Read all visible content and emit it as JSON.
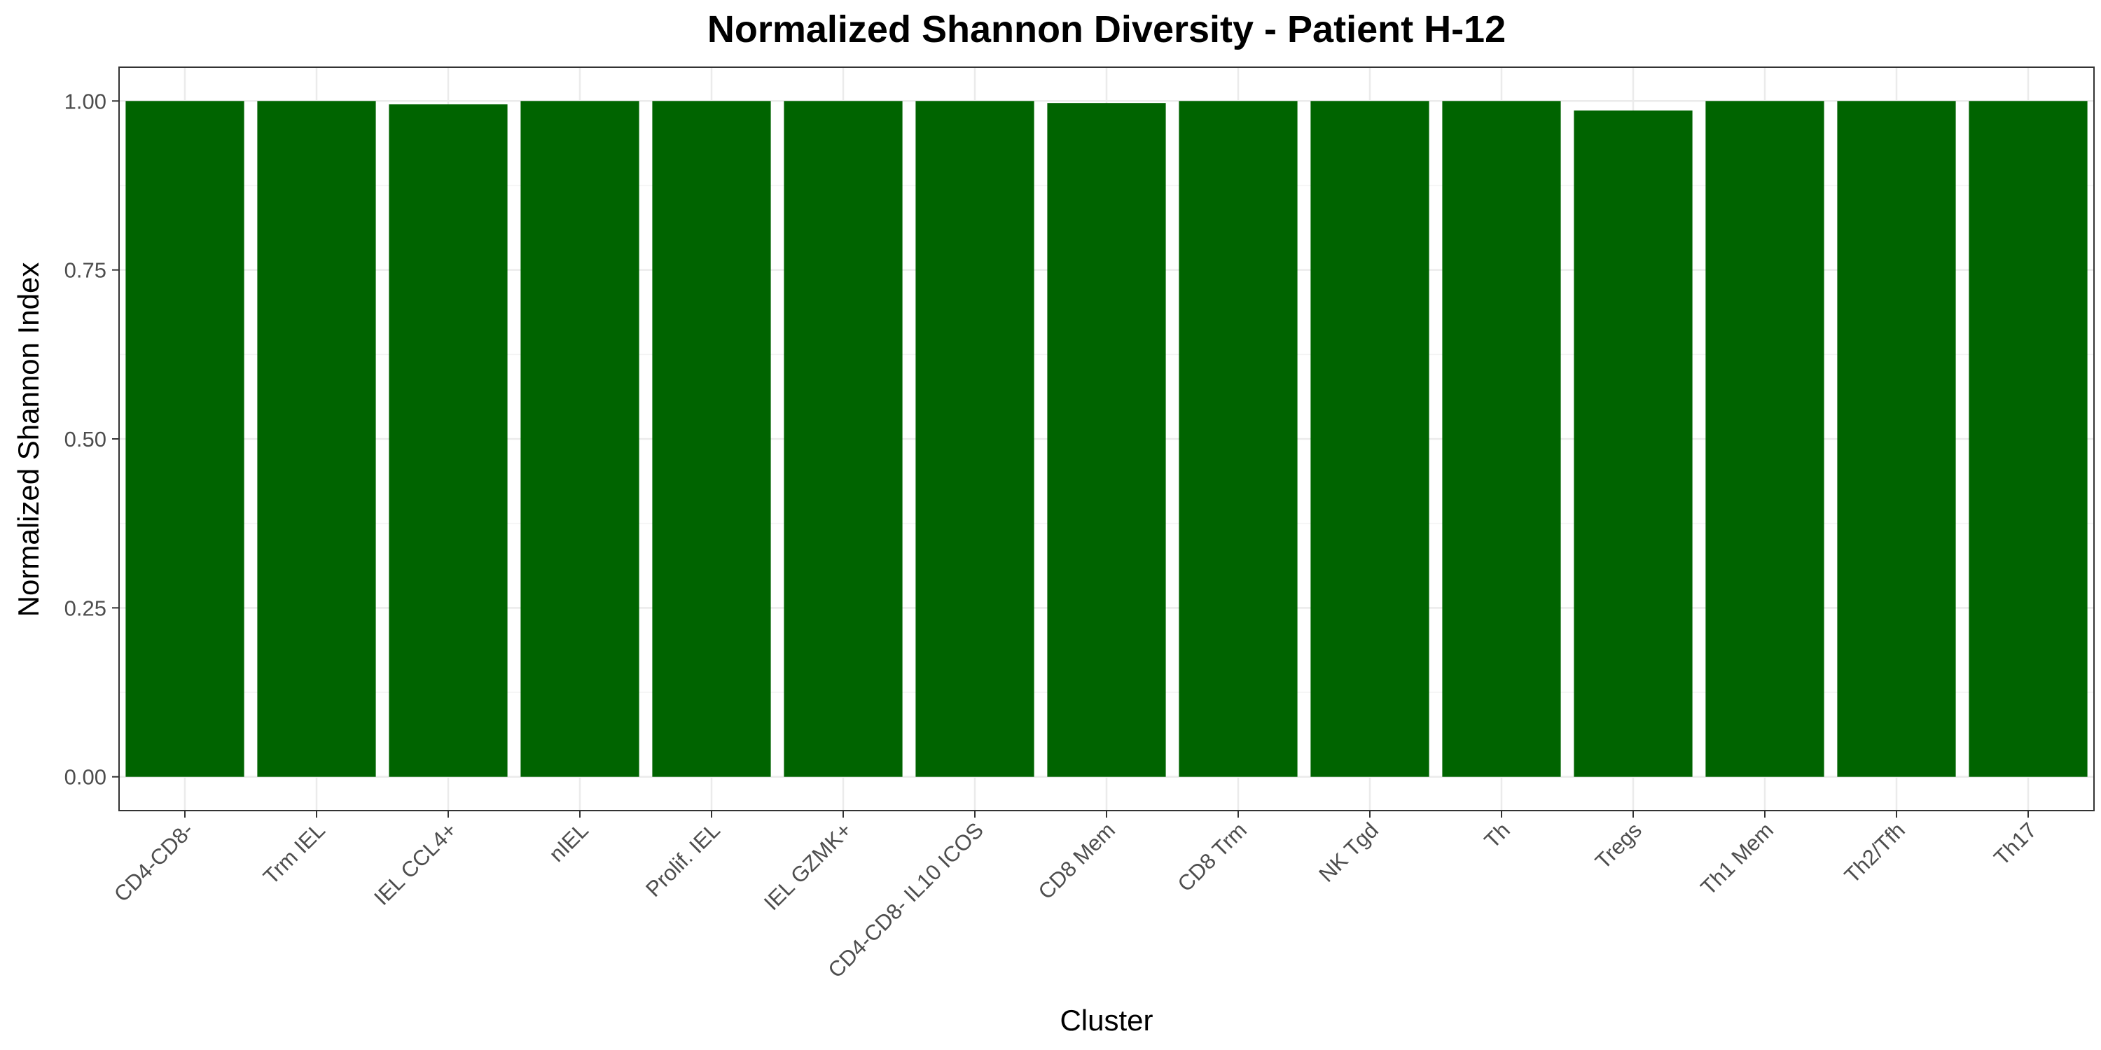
{
  "chart_data": {
    "type": "bar",
    "title": "Normalized Shannon Diversity - Patient H-12",
    "xlabel": "Cluster",
    "ylabel": "Normalized Shannon Index",
    "categories": [
      "CD4-CD8-",
      "Trm IEL",
      "IEL CCL4+",
      "nIEL",
      "Prolif. IEL",
      "IEL GZMK+",
      "CD4-CD8- IL10 ICOS",
      "CD8 Mem",
      "CD8 Trm",
      "NK Tgd",
      "Th",
      "Tregs",
      "Th1 Mem",
      "Th2/Tfh",
      "Th17"
    ],
    "values": [
      1.0,
      1.0,
      0.995,
      1.0,
      1.0,
      1.0,
      1.0,
      0.997,
      1.0,
      1.0,
      1.0,
      0.986,
      1.0,
      1.0,
      1.0
    ],
    "ylim": [
      -0.05,
      1.05
    ],
    "yticks": [
      0.0,
      0.25,
      0.5,
      0.75,
      1.0
    ],
    "ytick_labels": [
      "0.00",
      "0.25",
      "0.50",
      "0.75",
      "1.00"
    ],
    "bar_color": "#006400",
    "grid": true,
    "legend": "none"
  }
}
